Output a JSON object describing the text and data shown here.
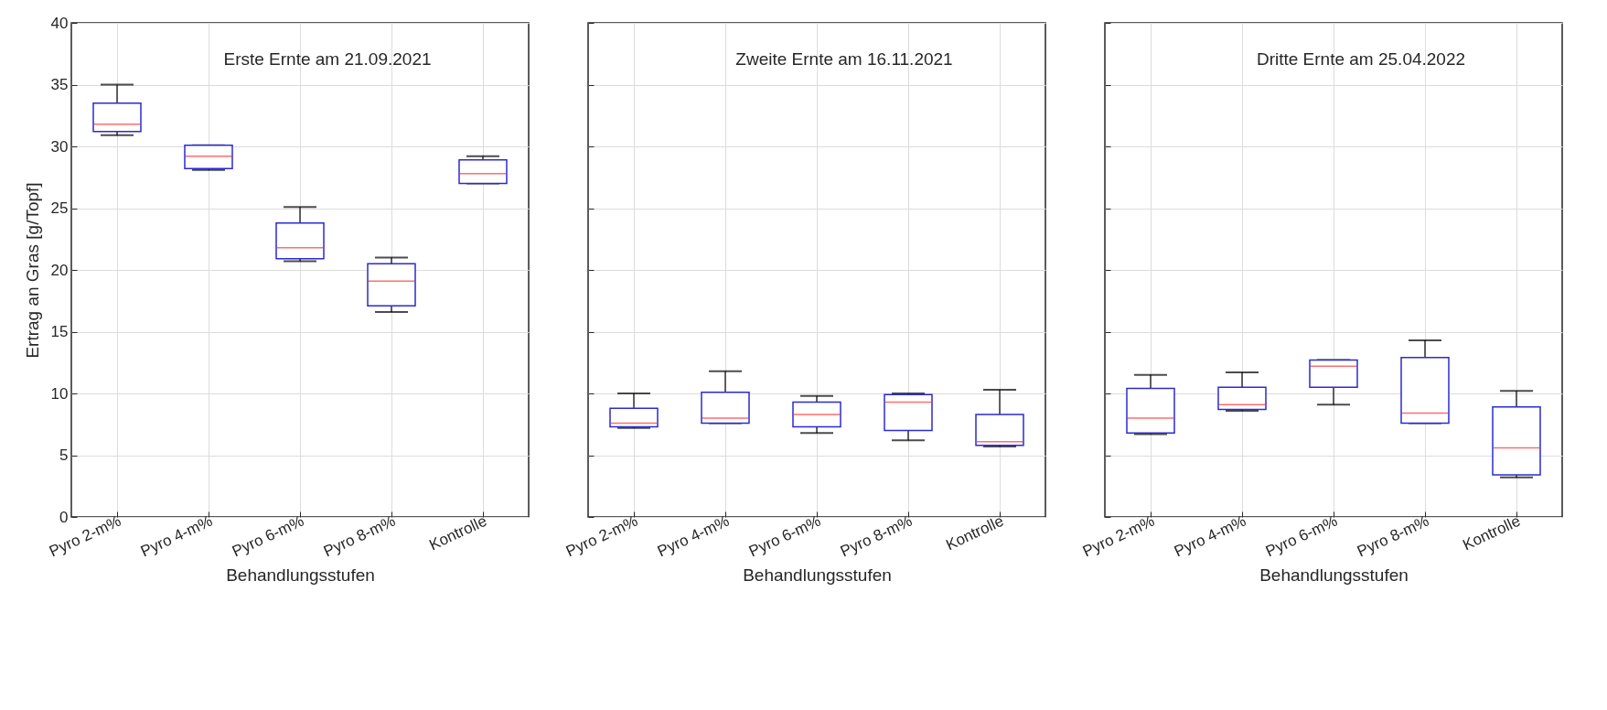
{
  "chart_data": [
    {
      "type": "box",
      "title": "Erste Ernte am 21.09.2021",
      "xlabel": "Behandlungsstufen",
      "ylabel": "Ertrag an Gras [g/Topf]",
      "categories": [
        "Pyro 2-m%",
        "Pyro 4-m%",
        "Pyro 6-m%",
        "Pyro 8-m%",
        "Kontrolle"
      ],
      "ylim": [
        0,
        40
      ],
      "yticks": [
        0,
        5,
        10,
        15,
        20,
        25,
        30,
        35,
        40
      ],
      "grid": true,
      "series": [
        {
          "color": "#2b2bd0",
          "boxes": [
            {
              "low": 30.9,
              "q1": 31.2,
              "median": 31.8,
              "q3": 33.5,
              "high": 35.0
            },
            {
              "low": 28.1,
              "q1": 28.2,
              "median": 29.2,
              "q3": 30.1,
              "high": 30.1
            },
            {
              "low": 20.7,
              "q1": 20.9,
              "median": 21.8,
              "q3": 23.8,
              "high": 25.1
            },
            {
              "low": 16.6,
              "q1": 17.1,
              "median": 19.1,
              "q3": 20.5,
              "high": 21.0
            },
            {
              "low": 27.0,
              "q1": 27.0,
              "median": 27.8,
              "q3": 28.9,
              "high": 29.2
            }
          ]
        }
      ]
    },
    {
      "type": "box",
      "title": "Zweite Ernte am 16.11.2021",
      "xlabel": "Behandlungsstufen",
      "categories": [
        "Pyro 2-m%",
        "Pyro 4-m%",
        "Pyro 6-m%",
        "Pyro 8-m%",
        "Kontrolle"
      ],
      "ylim": [
        0,
        40
      ],
      "yticks": [
        0,
        5,
        10,
        15,
        20,
        25,
        30,
        35,
        40
      ],
      "grid": true,
      "tick_labels": "x",
      "series": [
        {
          "color": "#2b2bd0",
          "boxes": [
            {
              "low": 7.2,
              "q1": 7.3,
              "median": 7.6,
              "q3": 8.8,
              "high": 10.0
            },
            {
              "low": 7.6,
              "q1": 7.6,
              "median": 8.0,
              "q3": 10.1,
              "high": 11.8
            },
            {
              "low": 6.8,
              "q1": 7.3,
              "median": 8.3,
              "q3": 9.3,
              "high": 9.8
            },
            {
              "low": 6.2,
              "q1": 7.0,
              "median": 9.3,
              "q3": 9.9,
              "high": 10.0
            },
            {
              "low": 5.7,
              "q1": 5.8,
              "median": 6.1,
              "q3": 8.3,
              "high": 10.3
            }
          ]
        }
      ]
    },
    {
      "type": "box",
      "title": "Dritte Ernte am 25.04.2022",
      "xlabel": "Behandlungsstufen",
      "categories": [
        "Pyro 2-m%",
        "Pyro 4-m%",
        "Pyro 6-m%",
        "Pyro 8-m%",
        "Kontrolle"
      ],
      "ylim": [
        0,
        40
      ],
      "yticks": [
        0,
        5,
        10,
        15,
        20,
        25,
        30,
        35,
        40
      ],
      "grid": true,
      "tick_labels": "x",
      "series": [
        {
          "color": "#2b2bd0",
          "boxes": [
            {
              "low": 6.7,
              "q1": 6.8,
              "median": 8.0,
              "q3": 10.4,
              "high": 11.5
            },
            {
              "low": 8.6,
              "q1": 8.7,
              "median": 9.1,
              "q3": 10.5,
              "high": 11.7
            },
            {
              "low": 9.1,
              "q1": 10.5,
              "median": 12.2,
              "q3": 12.7,
              "high": 12.7
            },
            {
              "low": 7.6,
              "q1": 7.6,
              "median": 8.4,
              "q3": 12.9,
              "high": 14.3
            },
            {
              "low": 3.2,
              "q1": 3.4,
              "median": 5.6,
              "q3": 8.9,
              "high": 10.2
            }
          ]
        }
      ]
    }
  ]
}
